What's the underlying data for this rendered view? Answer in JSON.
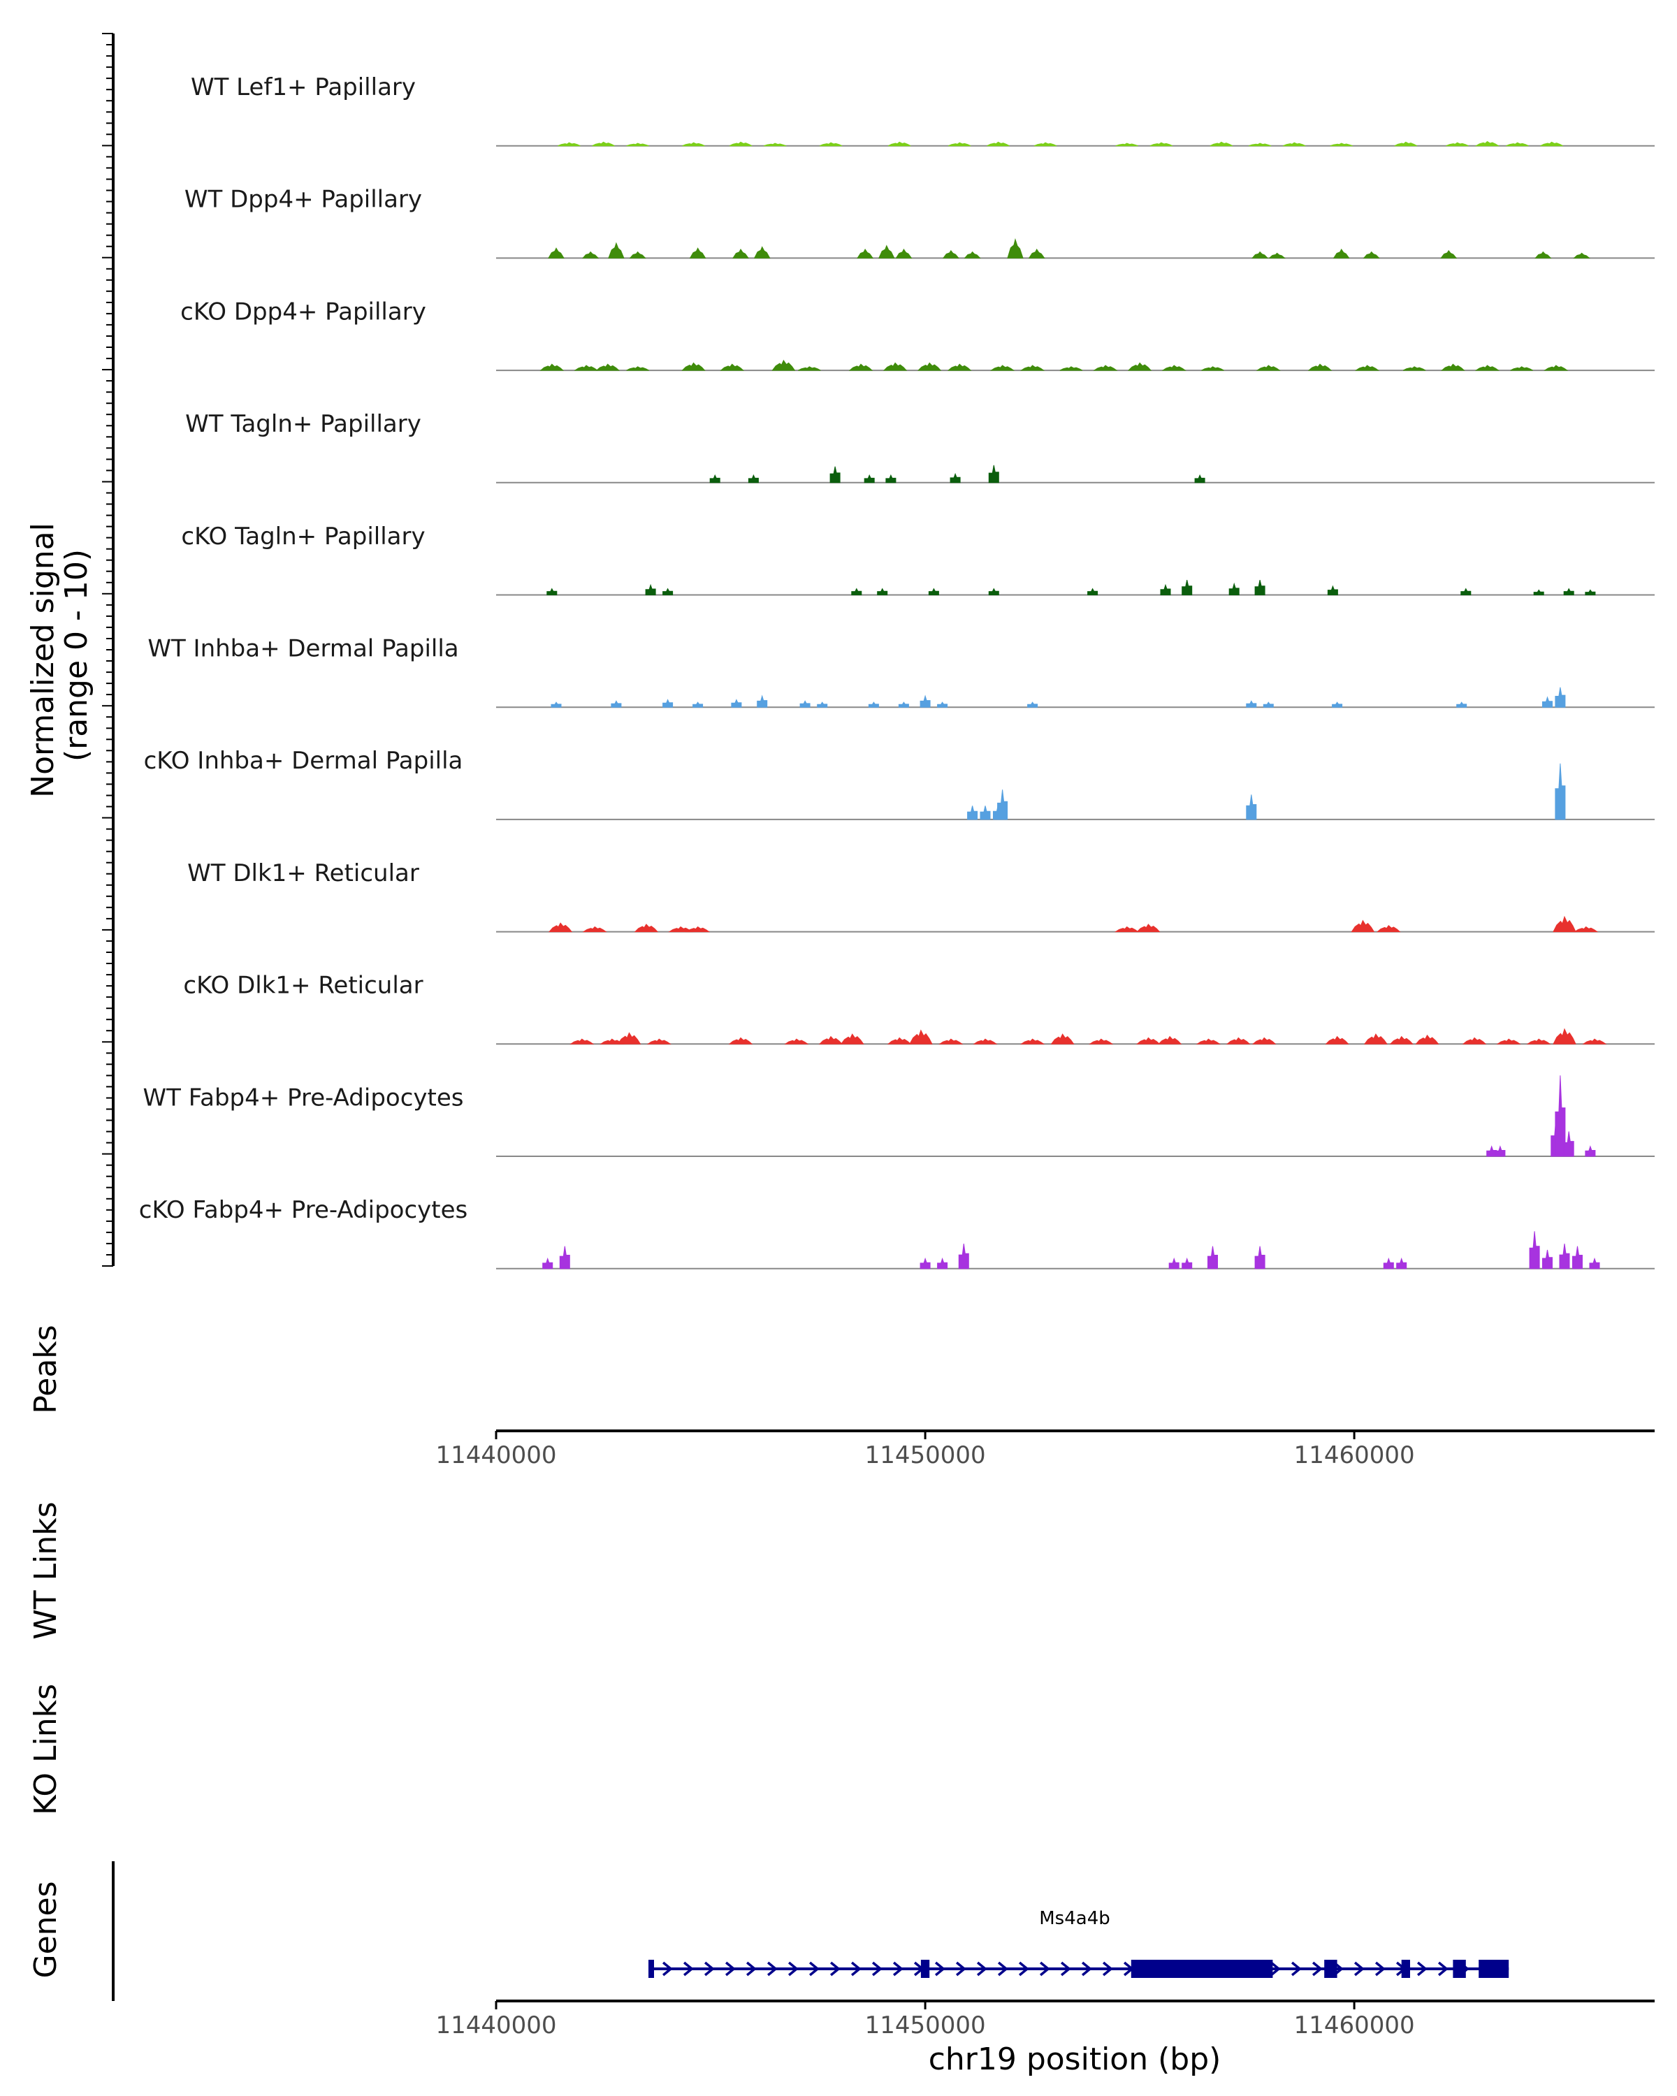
{
  "chart_data": {
    "type": "coverage-track",
    "region": {
      "chrom": "chr19",
      "start": 11440000,
      "end": 11467000
    },
    "ylabel_line1": "Normalized signal",
    "ylabel_line2": "(range 0 - 10)",
    "ylim": [
      0,
      10
    ],
    "panel_labels": {
      "peaks": "Peaks",
      "wt_links": "WT Links",
      "ko_links": "KO Links",
      "genes": "Genes"
    },
    "xlabel": "chr19 position (bp)",
    "xticks": [
      11440000,
      11450000,
      11460000
    ],
    "xtick_labels": [
      "11440000",
      "11450000",
      "11460000"
    ],
    "tracks": [
      {
        "name": "WT Lef1+ Papillary",
        "color": "#7cd019",
        "mode": "smooth",
        "peaks": [
          [
            11441700,
            0.25
          ],
          [
            11442500,
            0.3
          ],
          [
            11443300,
            0.2
          ],
          [
            11444600,
            0.25
          ],
          [
            11445700,
            0.3
          ],
          [
            11446500,
            0.2
          ],
          [
            11447800,
            0.25
          ],
          [
            11449400,
            0.3
          ],
          [
            11450800,
            0.25
          ],
          [
            11451700,
            0.3
          ],
          [
            11452800,
            0.25
          ],
          [
            11454700,
            0.2
          ],
          [
            11455500,
            0.25
          ],
          [
            11456900,
            0.3
          ],
          [
            11457800,
            0.2
          ],
          [
            11458600,
            0.25
          ],
          [
            11459700,
            0.2
          ],
          [
            11461200,
            0.3
          ],
          [
            11462400,
            0.25
          ],
          [
            11463100,
            0.35
          ],
          [
            11463800,
            0.25
          ],
          [
            11464600,
            0.3
          ]
        ]
      },
      {
        "name": "WT Dpp4+ Papillary",
        "color": "#3f8c0b",
        "mode": "peaks",
        "peaks": [
          [
            11441400,
            0.8
          ],
          [
            11442200,
            0.5
          ],
          [
            11442800,
            1.2
          ],
          [
            11443300,
            0.5
          ],
          [
            11444700,
            0.8
          ],
          [
            11445700,
            0.7
          ],
          [
            11446200,
            0.9
          ],
          [
            11448600,
            0.7
          ],
          [
            11449100,
            1.0
          ],
          [
            11449500,
            0.7
          ],
          [
            11450600,
            0.6
          ],
          [
            11451100,
            0.5
          ],
          [
            11452100,
            1.5
          ],
          [
            11452600,
            0.7
          ],
          [
            11457800,
            0.5
          ],
          [
            11458200,
            0.4
          ],
          [
            11459700,
            0.7
          ],
          [
            11460400,
            0.5
          ],
          [
            11462200,
            0.6
          ],
          [
            11464400,
            0.5
          ],
          [
            11465300,
            0.4
          ]
        ]
      },
      {
        "name": "cKO Dpp4+ Papillary",
        "color": "#3f8c0b",
        "mode": "smooth",
        "peaks": [
          [
            11441300,
            0.5
          ],
          [
            11442100,
            0.4
          ],
          [
            11442600,
            0.5
          ],
          [
            11443300,
            0.3
          ],
          [
            11444600,
            0.6
          ],
          [
            11445500,
            0.5
          ],
          [
            11446700,
            0.8
          ],
          [
            11447300,
            0.3
          ],
          [
            11448500,
            0.5
          ],
          [
            11449300,
            0.6
          ],
          [
            11450100,
            0.6
          ],
          [
            11450800,
            0.5
          ],
          [
            11451800,
            0.4
          ],
          [
            11452500,
            0.4
          ],
          [
            11453400,
            0.3
          ],
          [
            11454200,
            0.4
          ],
          [
            11455000,
            0.6
          ],
          [
            11455800,
            0.4
          ],
          [
            11456700,
            0.3
          ],
          [
            11458000,
            0.4
          ],
          [
            11459200,
            0.5
          ],
          [
            11460300,
            0.4
          ],
          [
            11461400,
            0.3
          ],
          [
            11462300,
            0.5
          ],
          [
            11463100,
            0.4
          ],
          [
            11463900,
            0.3
          ],
          [
            11464700,
            0.4
          ]
        ]
      },
      {
        "name": "WT Tagln+ Papillary",
        "color": "#0b5e0d",
        "mode": "blocky",
        "peaks": [
          [
            11445100,
            0.6
          ],
          [
            11446000,
            0.6
          ],
          [
            11447900,
            1.3
          ],
          [
            11448700,
            0.6
          ],
          [
            11449200,
            0.6
          ],
          [
            11450700,
            0.7
          ],
          [
            11451600,
            1.4
          ],
          [
            11456400,
            0.6
          ]
        ]
      },
      {
        "name": "cKO Tagln+ Papillary",
        "color": "#0b5e0d",
        "mode": "blocky",
        "peaks": [
          [
            11441300,
            0.5
          ],
          [
            11443600,
            0.8
          ],
          [
            11444000,
            0.5
          ],
          [
            11448400,
            0.5
          ],
          [
            11449000,
            0.5
          ],
          [
            11450200,
            0.5
          ],
          [
            11451600,
            0.5
          ],
          [
            11453900,
            0.5
          ],
          [
            11455600,
            0.8
          ],
          [
            11456100,
            1.2
          ],
          [
            11457200,
            0.9
          ],
          [
            11457800,
            1.2
          ],
          [
            11459500,
            0.7
          ],
          [
            11462600,
            0.5
          ],
          [
            11464300,
            0.4
          ],
          [
            11465000,
            0.5
          ],
          [
            11465500,
            0.4
          ]
        ]
      },
      {
        "name": "WT Inhba+ Dermal Papilla",
        "color": "#56a0e0",
        "mode": "blocky",
        "peaks": [
          [
            11441400,
            0.4
          ],
          [
            11442800,
            0.5
          ],
          [
            11444000,
            0.6
          ],
          [
            11444700,
            0.4
          ],
          [
            11445600,
            0.6
          ],
          [
            11446200,
            0.9
          ],
          [
            11447200,
            0.5
          ],
          [
            11447600,
            0.4
          ],
          [
            11448800,
            0.4
          ],
          [
            11449500,
            0.4
          ],
          [
            11450000,
            0.9
          ],
          [
            11450400,
            0.4
          ],
          [
            11452500,
            0.4
          ],
          [
            11457600,
            0.5
          ],
          [
            11458000,
            0.4
          ],
          [
            11459600,
            0.4
          ],
          [
            11462500,
            0.4
          ],
          [
            11464500,
            0.8
          ],
          [
            11464800,
            1.6
          ]
        ]
      },
      {
        "name": "cKO Inhba+ Dermal Papilla",
        "color": "#56a0e0",
        "mode": "blocky",
        "peaks": [
          [
            11451100,
            1.1
          ],
          [
            11451400,
            1.1
          ],
          [
            11451700,
            1.2
          ],
          [
            11451800,
            2.4
          ],
          [
            11457600,
            2.0
          ],
          [
            11464800,
            4.5
          ]
        ]
      },
      {
        "name": "WT Dlk1+ Reticular",
        "color": "#e8312d",
        "mode": "smooth",
        "peaks": [
          [
            11441500,
            0.7
          ],
          [
            11442300,
            0.4
          ],
          [
            11443500,
            0.6
          ],
          [
            11444300,
            0.4
          ],
          [
            11444700,
            0.4
          ],
          [
            11454700,
            0.4
          ],
          [
            11455200,
            0.6
          ],
          [
            11460200,
            0.9
          ],
          [
            11460800,
            0.5
          ],
          [
            11464900,
            1.2
          ],
          [
            11465400,
            0.4
          ]
        ]
      },
      {
        "name": "cKO Dlk1+ Reticular",
        "color": "#e8312d",
        "mode": "smooth",
        "peaks": [
          [
            11442000,
            0.4
          ],
          [
            11442700,
            0.4
          ],
          [
            11443100,
            0.9
          ],
          [
            11443800,
            0.4
          ],
          [
            11445700,
            0.5
          ],
          [
            11447000,
            0.4
          ],
          [
            11447800,
            0.6
          ],
          [
            11448300,
            0.8
          ],
          [
            11449400,
            0.5
          ],
          [
            11449900,
            1.1
          ],
          [
            11450600,
            0.4
          ],
          [
            11451400,
            0.4
          ],
          [
            11452500,
            0.4
          ],
          [
            11453200,
            0.8
          ],
          [
            11454100,
            0.4
          ],
          [
            11455200,
            0.5
          ],
          [
            11455700,
            0.6
          ],
          [
            11456600,
            0.4
          ],
          [
            11457300,
            0.5
          ],
          [
            11457900,
            0.5
          ],
          [
            11459600,
            0.6
          ],
          [
            11460500,
            0.8
          ],
          [
            11461100,
            0.6
          ],
          [
            11461700,
            0.7
          ],
          [
            11462800,
            0.5
          ],
          [
            11463600,
            0.4
          ],
          [
            11464300,
            0.4
          ],
          [
            11464900,
            1.2
          ],
          [
            11465600,
            0.4
          ]
        ]
      },
      {
        "name": "WT Fabp4+ Pre-Adipocytes",
        "color": "#a733df",
        "mode": "blocky",
        "peaks": [
          [
            11463200,
            0.8
          ],
          [
            11463400,
            0.8
          ],
          [
            11464700,
            3.0
          ],
          [
            11464800,
            6.5
          ],
          [
            11465000,
            2.0
          ],
          [
            11465500,
            0.8
          ]
        ]
      },
      {
        "name": "cKO Fabp4+ Pre-Adipocytes",
        "color": "#a733df",
        "mode": "blocky",
        "peaks": [
          [
            11441200,
            0.8
          ],
          [
            11441600,
            1.8
          ],
          [
            11450000,
            0.8
          ],
          [
            11450400,
            0.8
          ],
          [
            11450900,
            2.0
          ],
          [
            11455800,
            0.8
          ],
          [
            11456100,
            0.8
          ],
          [
            11456700,
            1.8
          ],
          [
            11457800,
            1.8
          ],
          [
            11460800,
            0.8
          ],
          [
            11461100,
            0.8
          ],
          [
            11464200,
            3.0
          ],
          [
            11464500,
            1.5
          ],
          [
            11464900,
            2.0
          ],
          [
            11465200,
            1.8
          ],
          [
            11465600,
            0.8
          ]
        ]
      }
    ],
    "gene": {
      "name": "Ms4a4b",
      "color": "#00008b",
      "strand": "+",
      "start": 11443600,
      "end": 11463600,
      "exons": [
        [
          11443550,
          11443680
        ],
        [
          11449900,
          11450100
        ],
        [
          11454800,
          11458100
        ],
        [
          11459300,
          11459600
        ],
        [
          11461100,
          11461300
        ],
        [
          11462300,
          11462600
        ],
        [
          11462900,
          11463600
        ]
      ]
    }
  }
}
